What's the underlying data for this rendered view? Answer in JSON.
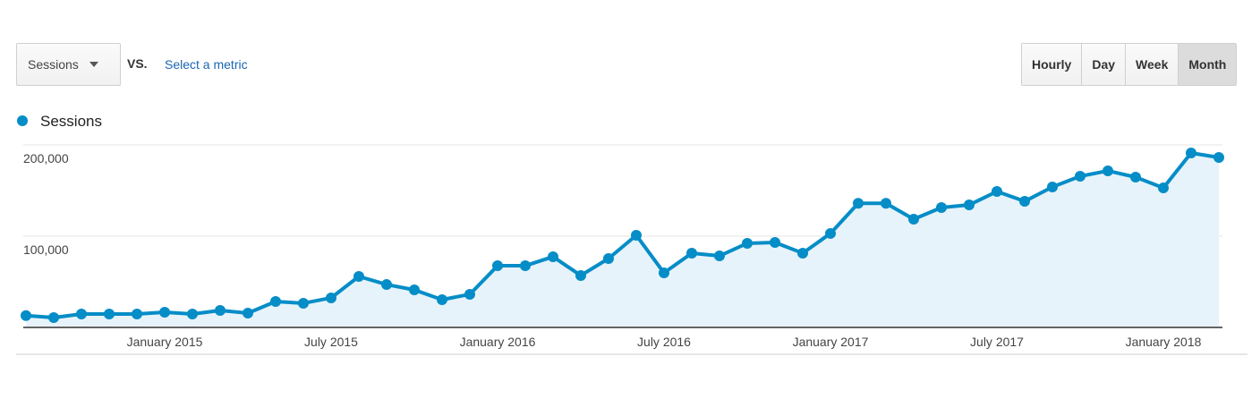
{
  "controls": {
    "metric_selector": "Sessions",
    "vs": "VS.",
    "select_metric": "Select a metric",
    "granularity": [
      "Hourly",
      "Day",
      "Week",
      "Month"
    ],
    "selected_index": 3
  },
  "chart_data": {
    "type": "line",
    "categories": [
      null,
      null,
      null,
      null,
      null,
      "January 2015",
      null,
      null,
      null,
      null,
      null,
      "July 2015",
      null,
      null,
      null,
      null,
      null,
      "January 2016",
      null,
      null,
      null,
      null,
      null,
      "July 2016",
      null,
      null,
      null,
      null,
      null,
      "January 2017",
      null,
      null,
      null,
      null,
      null,
      "July 2017",
      null,
      null,
      null,
      null,
      null,
      "January 2018",
      null,
      null
    ],
    "series": [
      {
        "name": "Sessions",
        "color": "#058dc7",
        "values": [
          13000,
          10800,
          14700,
          14700,
          14700,
          16700,
          14700,
          18600,
          15700,
          28400,
          26500,
          32400,
          55900,
          47000,
          41200,
          30400,
          36300,
          67600,
          67600,
          77500,
          56900,
          75500,
          101000,
          59800,
          81400,
          78400,
          92200,
          93100,
          81400,
          103000,
          136000,
          136000,
          118600,
          131400,
          134300,
          149000,
          138200,
          153900,
          165700,
          171600,
          164700,
          152900,
          191200,
          186300
        ]
      }
    ],
    "ylim": [
      0,
      200000
    ],
    "yticks": [
      {
        "value": 100000,
        "label": "100,000"
      },
      {
        "value": 200000,
        "label": "200,000"
      }
    ],
    "grid": true,
    "area": true
  }
}
